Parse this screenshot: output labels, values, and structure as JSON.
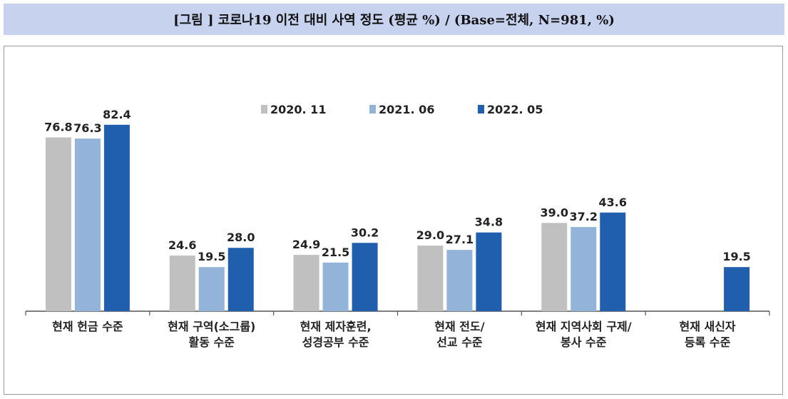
{
  "header": {
    "title": "[그림 ] 코로나19 이전 대비 사역 정도 (평균 %) / (Base=전체, N=981, %)"
  },
  "chart_data": {
    "type": "bar",
    "title": "[그림 ] 코로나19 이전 대비 사역 정도 (평균 %) / (Base=전체, N=981, %)",
    "categories": [
      [
        "현재 헌금 수준"
      ],
      [
        "현재 구역(소그룹)",
        "활동 수준"
      ],
      [
        "현재 제자훈련,",
        "성경공부 수준"
      ],
      [
        "현재 전도/",
        "선교 수준"
      ],
      [
        "현재 지역사회 구제/",
        "봉사 수준"
      ],
      [
        "현재 새신자",
        "등록 수준"
      ]
    ],
    "series": [
      {
        "name": "2020. 11",
        "color": "#c0c0c0",
        "values": [
          76.8,
          24.6,
          24.9,
          29.0,
          39.0,
          null
        ]
      },
      {
        "name": "2021. 06",
        "color": "#94b3d9",
        "values": [
          76.3,
          19.5,
          21.5,
          27.1,
          37.2,
          null
        ]
      },
      {
        "name": "2022. 05",
        "color": "#1f5fae",
        "values": [
          82.4,
          28.0,
          30.2,
          34.8,
          43.6,
          19.5
        ]
      }
    ],
    "ylim": [
      0,
      100
    ],
    "legend_position": "top-center",
    "grid": false
  }
}
